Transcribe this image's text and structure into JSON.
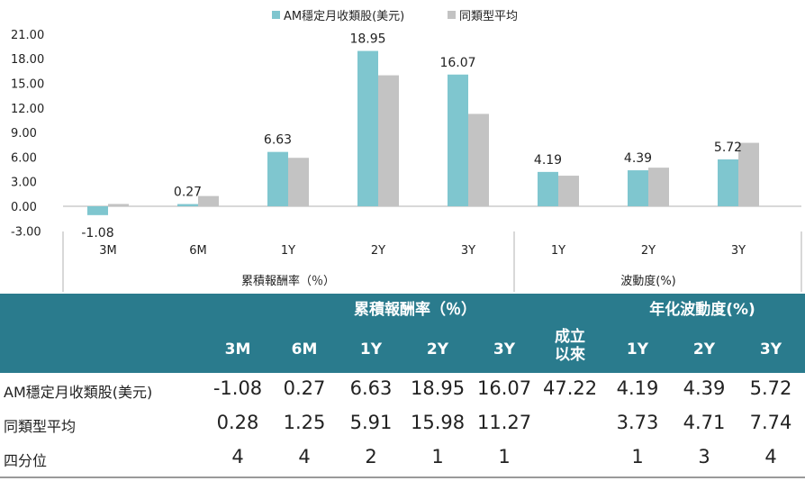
{
  "legend": [
    {
      "name": "AM穩定月收類股(美元)",
      "color": "#7fc6cf"
    },
    {
      "name": "同類型平均",
      "color": "#c3c3c3"
    }
  ],
  "chart_data": {
    "type": "bar",
    "categories": [
      "3M",
      "6M",
      "1Y",
      "2Y",
      "3Y",
      "1Y",
      "2Y",
      "3Y"
    ],
    "groups": [
      {
        "label": "累積報酬率（％）",
        "categories": [
          "3M",
          "6M",
          "1Y",
          "2Y",
          "3Y"
        ]
      },
      {
        "label": "波動度(%)",
        "categories": [
          "1Y",
          "2Y",
          "3Y"
        ]
      }
    ],
    "series": [
      {
        "name": "AM穩定月收類股(美元)",
        "values": [
          -1.08,
          0.27,
          6.63,
          18.95,
          16.07,
          4.19,
          4.39,
          5.72
        ],
        "color": "#7fc6cf"
      },
      {
        "name": "同類型平均",
        "values": [
          0.28,
          1.25,
          5.91,
          15.98,
          11.27,
          3.73,
          4.71,
          7.74
        ],
        "color": "#c3c3c3"
      }
    ],
    "data_labels": [
      "-1.08",
      "0.27",
      "6.63",
      "18.95",
      "16.07",
      "4.19",
      "4.39",
      "5.72"
    ],
    "yticks": [
      "21.00",
      "18.00",
      "15.00",
      "12.00",
      "9.00",
      "6.00",
      "3.00",
      "0.00",
      "-3.00"
    ],
    "ylim": [
      -3,
      21
    ],
    "grid": false,
    "legend_position": "top-center"
  },
  "table": {
    "group_headers": [
      "累積報酬率（％）",
      "年化波動度(%)"
    ],
    "columns": [
      "3M",
      "6M",
      "1Y",
      "2Y",
      "3Y",
      "成立\n以來",
      "1Y",
      "2Y",
      "3Y"
    ],
    "rows": [
      {
        "label": "AM穩定月收類股(美元)",
        "values": [
          "-1.08",
          "0.27",
          "6.63",
          "18.95",
          "16.07",
          "47.22",
          "4.19",
          "4.39",
          "5.72"
        ]
      },
      {
        "label": "同類型平均",
        "values": [
          "0.28",
          "1.25",
          "5.91",
          "15.98",
          "11.27",
          "",
          "3.73",
          "4.71",
          "7.74"
        ]
      },
      {
        "label": "四分位",
        "values": [
          "4",
          "4",
          "2",
          "1",
          "1",
          "",
          "1",
          "3",
          "4"
        ]
      }
    ],
    "header_color": "#2a7b8d"
  }
}
